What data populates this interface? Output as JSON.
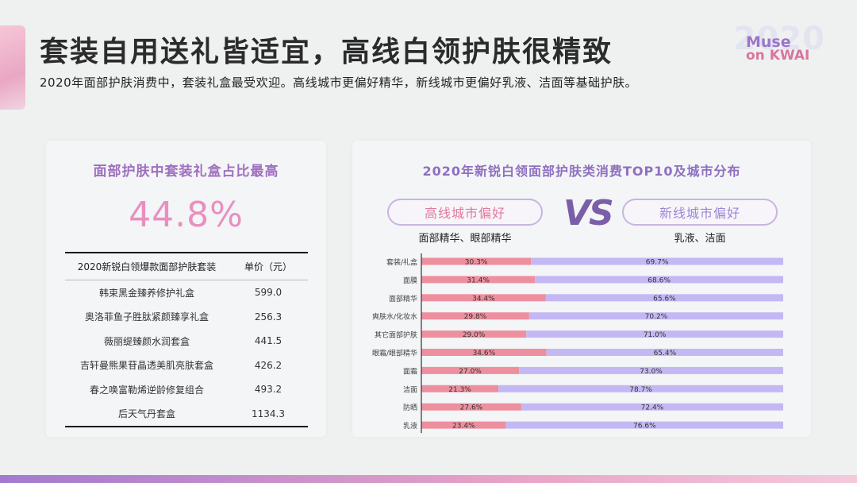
{
  "header": {
    "title": "套装自用送礼皆适宜，高线白领护肤很精致",
    "subtitle": "2020年面部护肤消费中，套装礼盒最受欢迎。高线城市更偏好精华，新线城市更偏好乳液、洁面等基础护肤。"
  },
  "brand": {
    "year": "2020",
    "line1": "Muse",
    "line2": "on KWAI"
  },
  "left_panel": {
    "title": "面部护肤中套装礼盒占比最高",
    "big_value": "44.8%",
    "table": {
      "headers": [
        "2020新锐白领爆款面部护肤套装",
        "单价（元）"
      ],
      "rows": [
        {
          "name": "韩束黑金臻养修护礼盒",
          "price": "599.0"
        },
        {
          "name": "奥洛菲鱼子胜肽紧颜臻享礼盒",
          "price": "256.3"
        },
        {
          "name": "薇丽缇臻颜水润套盒",
          "price": "441.5"
        },
        {
          "name": "吉轩曼熊果苷晶透美肌亮肤套盒",
          "price": "426.2"
        },
        {
          "name": "春之唤富勒烯逆龄修复组合",
          "price": "493.2"
        },
        {
          "name": "后天气丹套盒",
          "price": "1134.3"
        }
      ]
    }
  },
  "right_panel": {
    "title": "2020年新锐白领面部护肤类消费TOP10及城市分布",
    "vs": "VS",
    "high_city": {
      "label": "高线城市偏好",
      "items": "面部精华、眼部精华"
    },
    "new_city": {
      "label": "新线城市偏好",
      "items": "乳液、洁面"
    }
  },
  "colors": {
    "high_city_bar": "#ee8f9f",
    "new_city_bar": "#c4b8f4",
    "accent_purple": "#9f6fbf",
    "accent_pink": "#e98fc0"
  },
  "chart_data": {
    "type": "bar",
    "orientation": "horizontal",
    "stacked": true,
    "percent_stacked": true,
    "categories": [
      "套装/礼盒",
      "面膜",
      "面部精华",
      "爽肤水/化妆水",
      "其它面部护肤",
      "眼霜/眼部精华",
      "面霜",
      "洁面",
      "防晒",
      "乳液"
    ],
    "series": [
      {
        "name": "高线城市偏好",
        "color": "#ee8f9f",
        "values": [
          30.3,
          31.4,
          34.4,
          29.8,
          29.0,
          34.6,
          27.0,
          21.3,
          27.6,
          23.4
        ]
      },
      {
        "name": "新线城市偏好",
        "color": "#c4b8f4",
        "values": [
          69.7,
          68.6,
          65.6,
          70.2,
          71.0,
          65.4,
          73.0,
          78.7,
          72.4,
          76.6
        ]
      }
    ],
    "value_labels": [
      [
        "30.3%",
        "69.7%"
      ],
      [
        "31.4%",
        "68.6%"
      ],
      [
        "34.4%",
        "65.6%"
      ],
      [
        "29.8%",
        "70.2%"
      ],
      [
        "29.0%",
        "71.0%"
      ],
      [
        "34.6%",
        "65.4%"
      ],
      [
        "27.0%",
        "73.0%"
      ],
      [
        "21.3%",
        "78.7%"
      ],
      [
        "27.6%",
        "72.4%"
      ],
      [
        "23.4%",
        "76.6%"
      ]
    ],
    "xlim": [
      0,
      100
    ],
    "grid": false,
    "legend": "none"
  }
}
